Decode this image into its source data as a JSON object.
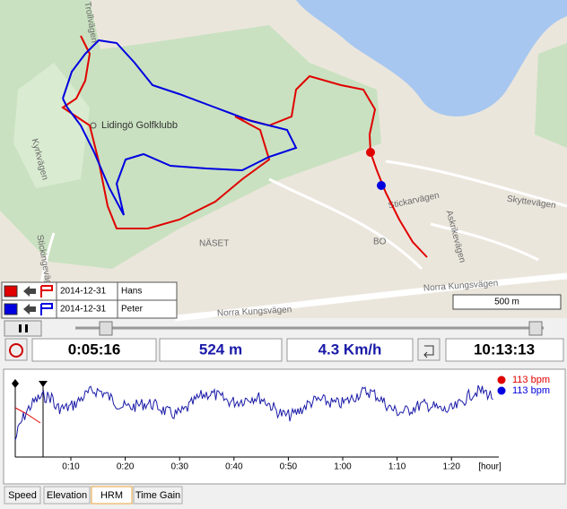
{
  "map": {
    "labels": [
      "Lidingö Golfklubb",
      "NÄSET",
      "BO",
      "Norra Kungsvägen",
      "Norra Kungsvägen",
      "Stickarvägen",
      "Askrikevägen",
      "Skyttevägen",
      "Kyrkvägen",
      "Stickingevägen",
      "Trollvägen"
    ],
    "scale": "500 m"
  },
  "tracks": [
    {
      "date": "2014-12-31",
      "name": "Hans",
      "color": "#e00000"
    },
    {
      "date": "2014-12-31",
      "name": "Peter",
      "color": "#0000e0"
    }
  ],
  "status": {
    "elapsed": "0:05:16",
    "distance": "524 m",
    "speed": "4.3 Km/h",
    "clock": "10:13:13"
  },
  "hrm": {
    "x_ticks": [
      "0:10",
      "0:20",
      "0:30",
      "0:40",
      "0:50",
      "1:00",
      "1:10",
      "1:20"
    ],
    "x_unit": "[hour]",
    "legend": [
      "113 bpm",
      "113 bpm"
    ]
  },
  "tabs": [
    "Speed",
    "Elevation",
    "HRM",
    "Time Gain"
  ]
}
